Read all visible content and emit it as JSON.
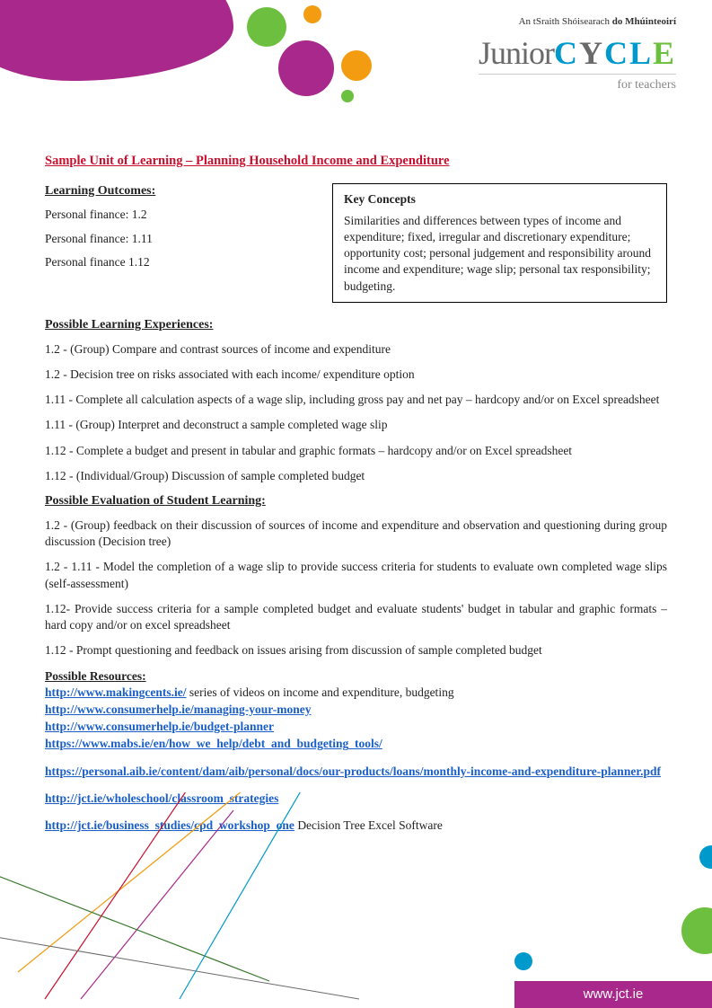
{
  "header": {
    "tagline_pre": "An tSraith Shóisearach ",
    "tagline_post": "do Mhúinteoirí",
    "logo_junior": "Junior",
    "logo_c": "C",
    "logo_y": "Y",
    "logo_c2": "C",
    "logo_l": "L",
    "logo_e": "E",
    "logo_sub": "for teachers"
  },
  "title": "Sample Unit of Learning – Planning Household Income and Expenditure",
  "outcomes": {
    "heading": "Learning Outcomes:",
    "items": [
      "Personal finance: 1.2",
      "Personal finance: 1.11",
      "Personal finance 1.12"
    ]
  },
  "keyconcepts": {
    "heading": "Key Concepts",
    "body": "Similarities and differences between types of income and expenditure; fixed, irregular and discretionary expenditure; opportunity cost; personal judgement and responsibility around income and expenditure; wage slip; personal tax responsibility; budgeting."
  },
  "experiences": {
    "heading": "Possible Learning Experiences:",
    "items": [
      "1.2 - (Group) Compare and contrast sources of income and expenditure",
      "1.2 - Decision tree on risks associated with each income/ expenditure option",
      "1.11 - Complete all calculation aspects of a wage slip, including gross pay and net pay – hardcopy and/or on Excel spreadsheet",
      "1.11 - (Group) Interpret and deconstruct a sample completed wage slip",
      "1.12 - Complete a budget and present in tabular and graphic formats – hardcopy and/or on Excel spreadsheet",
      "1.12 - (Individual/Group) Discussion of sample completed budget"
    ]
  },
  "evaluation": {
    "heading": "Possible Evaluation of Student Learning:",
    "items": [
      "1.2 - (Group) feedback on their discussion of sources of income and expenditure and observation and questioning during group discussion (Decision tree)",
      "1.2 - 1.11 - Model the completion of a wage slip to provide success criteria for students to evaluate own completed wage slips (self-assessment)",
      "1.12- Provide success criteria for a sample completed budget and evaluate students' budget in tabular and graphic formats – hard copy and/or on excel spreadsheet",
      "1.12 - Prompt questioning and feedback on issues arising from discussion of sample completed budget"
    ]
  },
  "resources": {
    "heading": "Possible Resources:",
    "lines": [
      {
        "link": "http://www.makingcents.ie/",
        "tail": " series of videos on income and expenditure, budgeting"
      },
      {
        "link": "http://www.consumerhelp.ie/managing-your-money",
        "tail": ""
      },
      {
        "link": "http://www.consumerhelp.ie/budget-planner",
        "tail": ""
      },
      {
        "link": "https://www.mabs.ie/en/how_we_help/debt_and_budgeting_tools/",
        "tail": ""
      }
    ],
    "blocks": [
      {
        "link": "https://personal.aib.ie/content/dam/aib/personal/docs/our-products/loans/monthly-income-and-expenditure-planner.pdf",
        "tail": ""
      },
      {
        "link": "http://jct.ie/wholeschool/classroom_strategies",
        "tail": ""
      },
      {
        "link": "http://jct.ie/business_studies/cpd_workshop_one",
        "tail": " Decision Tree Excel Software"
      }
    ]
  },
  "footer": {
    "url": "www.jct.ie"
  },
  "colors": {
    "purple": "#a8288b",
    "green": "#6cbf3f",
    "orange": "#f39c12",
    "cyan": "#0099cc",
    "red": "#c8102e",
    "linkblue": "#1a5fc7",
    "darkgreen": "#3a7a2f"
  }
}
